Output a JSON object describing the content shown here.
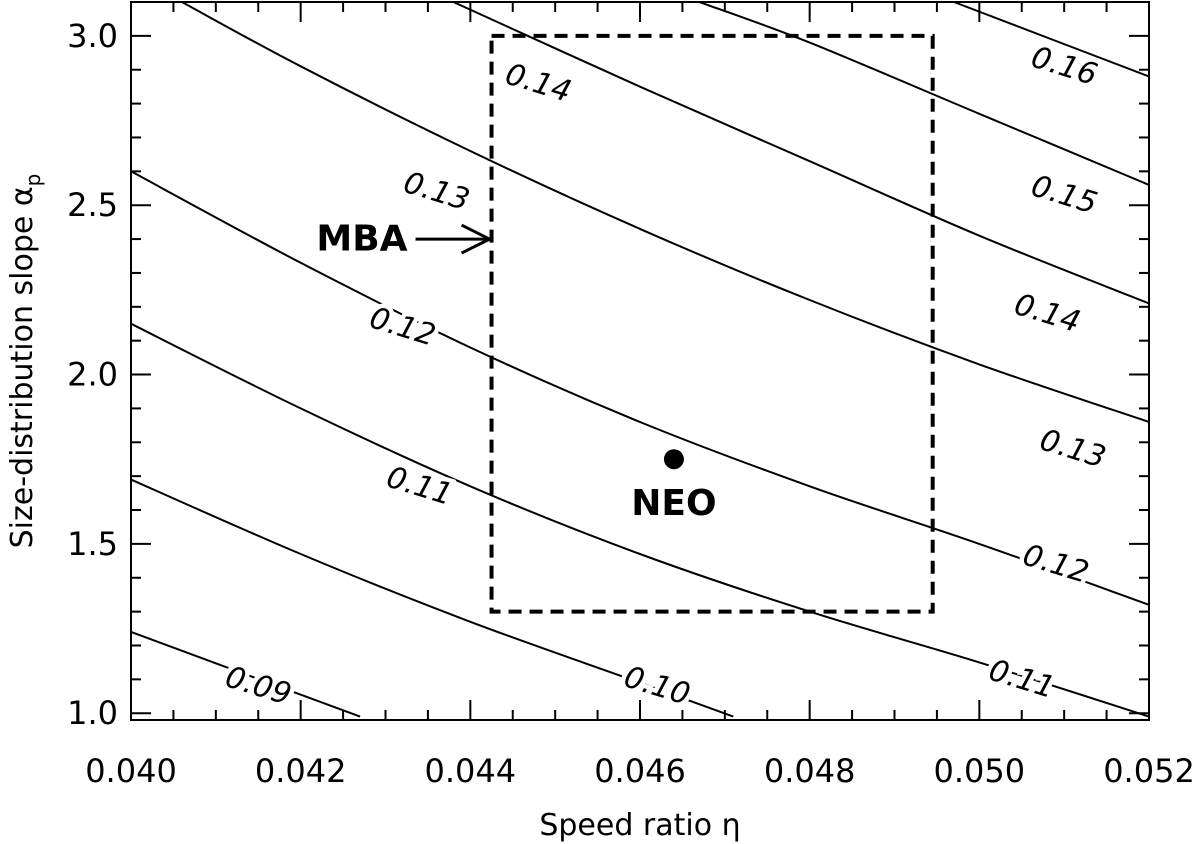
{
  "chart_data": {
    "type": "contour",
    "title": "",
    "xlabel": "Speed ratio η",
    "ylabel": "Size-distribution slope α",
    "ylabel_subscript": "p",
    "xlim": [
      0.04,
      0.052
    ],
    "ylim": [
      0.98,
      3.1
    ],
    "x_ticks": [
      "0.040",
      "0.042",
      "0.044",
      "0.046",
      "0.048",
      "0.050",
      "0.052"
    ],
    "y_ticks": [
      "1.0",
      "1.5",
      "2.0",
      "2.5",
      "3.0"
    ],
    "grid": false,
    "contours": [
      {
        "level": "0.09",
        "points": [
          [
            0.04,
            1.24
          ],
          [
            0.0427,
            0.99
          ]
        ]
      },
      {
        "level": "0.10",
        "points": [
          [
            0.04,
            1.69
          ],
          [
            0.042,
            1.47
          ],
          [
            0.044,
            1.27
          ],
          [
            0.046,
            1.09
          ],
          [
            0.0471,
            0.99
          ]
        ]
      },
      {
        "level": "0.11",
        "points": [
          [
            0.04,
            2.15
          ],
          [
            0.042,
            1.9
          ],
          [
            0.044,
            1.67
          ],
          [
            0.046,
            1.47
          ],
          [
            0.048,
            1.3
          ],
          [
            0.05,
            1.15
          ],
          [
            0.052,
            0.99
          ]
        ]
      },
      {
        "level": "0.12",
        "points": [
          [
            0.04,
            2.6
          ],
          [
            0.042,
            2.33
          ],
          [
            0.044,
            2.08
          ],
          [
            0.046,
            1.86
          ],
          [
            0.048,
            1.67
          ],
          [
            0.05,
            1.5
          ],
          [
            0.052,
            1.32
          ]
        ]
      },
      {
        "level": "0.13",
        "points": [
          [
            0.0406,
            3.1
          ],
          [
            0.042,
            2.91
          ],
          [
            0.044,
            2.66
          ],
          [
            0.046,
            2.43
          ],
          [
            0.048,
            2.22
          ],
          [
            0.05,
            2.03
          ],
          [
            0.052,
            1.86
          ]
        ]
      },
      {
        "level": "0.14",
        "points": [
          [
            0.0438,
            3.1
          ],
          [
            0.046,
            2.85
          ],
          [
            0.048,
            2.63
          ],
          [
            0.05,
            2.41
          ],
          [
            0.052,
            2.21
          ]
        ]
      },
      {
        "level": "0.15",
        "points": [
          [
            0.0467,
            3.1
          ],
          [
            0.048,
            2.98
          ],
          [
            0.05,
            2.77
          ],
          [
            0.052,
            2.56
          ]
        ]
      },
      {
        "level": "0.16",
        "points": [
          [
            0.0497,
            3.1
          ],
          [
            0.052,
            2.88
          ]
        ]
      }
    ],
    "contour_labels": [
      {
        "text": "0.09",
        "x": 0.0415,
        "y": 1.08
      },
      {
        "text": "0.10",
        "x": 0.0462,
        "y": 1.08
      },
      {
        "text": "0.11",
        "x": 0.0505,
        "y": 1.1
      },
      {
        "text": "0.12",
        "x": 0.0509,
        "y": 1.44
      },
      {
        "text": "0.13",
        "x": 0.0511,
        "y": 1.78
      },
      {
        "text": "0.14",
        "x": 0.0508,
        "y": 2.18
      },
      {
        "text": "0.15",
        "x": 0.051,
        "y": 2.53
      },
      {
        "text": "0.16",
        "x": 0.051,
        "y": 2.91
      },
      {
        "text": "0.14",
        "x": 0.0448,
        "y": 2.86
      },
      {
        "text": "0.13",
        "x": 0.0436,
        "y": 2.54
      },
      {
        "text": "0.12",
        "x": 0.0432,
        "y": 2.14
      },
      {
        "text": "0.11",
        "x": 0.0434,
        "y": 1.67
      }
    ],
    "region": {
      "style": "dashed",
      "x": [
        0.04425,
        0.04945
      ],
      "y": [
        1.3,
        3.0
      ]
    },
    "point": {
      "label": "NEO",
      "x": 0.0464,
      "y": 1.75
    },
    "arrow": {
      "label": "MBA",
      "x": 0.04425,
      "y": 2.4
    }
  }
}
